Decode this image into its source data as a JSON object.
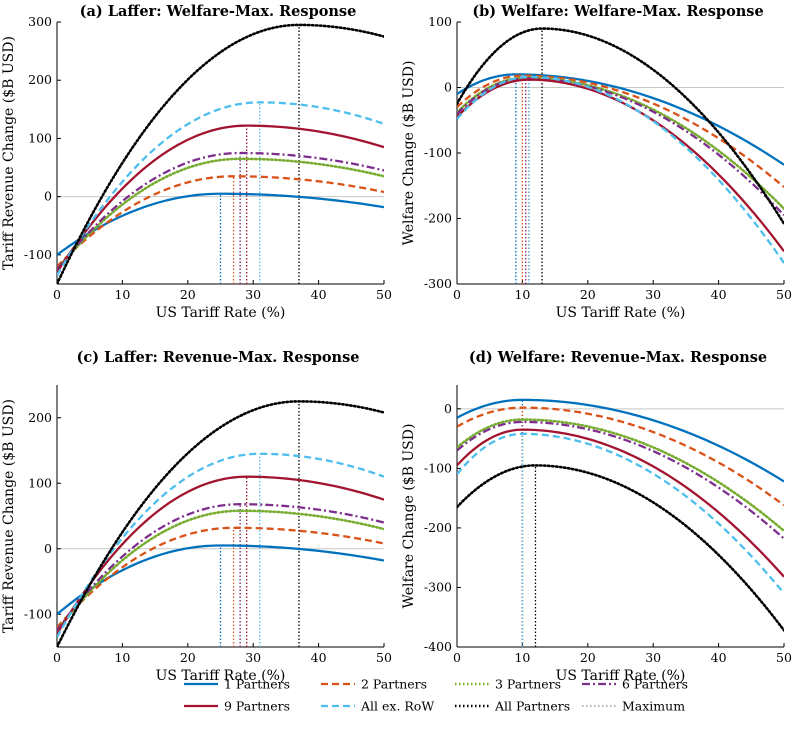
{
  "chart_data": [
    {
      "type": "line",
      "title": "(a) Laffer: Welfare-Max. Response",
      "xlabel": "US Tariff Rate (%)",
      "ylabel": "Tariff Revenue Change ($B USD)",
      "xlim": [
        0,
        50
      ],
      "ylim": [
        -150,
        300
      ],
      "xticks": [
        0,
        10,
        20,
        30,
        40,
        50
      ],
      "yticks": [
        -100,
        0,
        100,
        200,
        300
      ],
      "series": [
        {
          "key": "p1",
          "a": 0,
          "b": -100,
          "t": 25,
          "m": 5,
          "e": -18
        },
        {
          "key": "p2",
          "a": 0,
          "b": -120,
          "t": 27,
          "m": 35,
          "e": 8
        },
        {
          "key": "p3",
          "a": 0,
          "b": -125,
          "t": 28,
          "m": 65,
          "e": 35
        },
        {
          "key": "p6",
          "a": 0,
          "b": -125,
          "t": 28,
          "m": 75,
          "e": 45
        },
        {
          "key": "p9",
          "a": 0,
          "b": -130,
          "t": 29,
          "m": 122,
          "e": 85
        },
        {
          "key": "row",
          "a": 0,
          "b": -135,
          "t": 31,
          "m": 162,
          "e": 125
        },
        {
          "key": "all",
          "a": 0,
          "b": -150,
          "t": 37,
          "m": 295,
          "e": 275
        }
      ]
    },
    {
      "type": "line",
      "title": "(b) Welfare: Welfare-Max. Response",
      "xlabel": "US Tariff Rate (%)",
      "ylabel": "Welfare Change ($B USD)",
      "xlim": [
        0,
        50
      ],
      "ylim": [
        -300,
        100
      ],
      "xticks": [
        0,
        10,
        20,
        30,
        40,
        50
      ],
      "yticks": [
        -300,
        -200,
        -100,
        0,
        100
      ],
      "series": [
        {
          "key": "p1",
          "a": 0,
          "b": -10,
          "t": 9,
          "m": 20,
          "e": -118
        },
        {
          "key": "p2",
          "a": 0,
          "b": -30,
          "t": 10,
          "m": 18,
          "e": -152
        },
        {
          "key": "p3",
          "a": 0,
          "b": -38,
          "t": 10.5,
          "m": 15,
          "e": -185
        },
        {
          "key": "p6",
          "a": 0,
          "b": -40,
          "t": 10.5,
          "m": 14,
          "e": -195
        },
        {
          "key": "p9",
          "a": 0,
          "b": -45,
          "t": 11,
          "m": 12,
          "e": -250
        },
        {
          "key": "row",
          "a": 0,
          "b": -48,
          "t": 11,
          "m": 16,
          "e": -268
        },
        {
          "key": "all",
          "a": 0,
          "b": -25,
          "t": 13,
          "m": 90,
          "e": -208
        }
      ]
    },
    {
      "type": "line",
      "title": "(c) Laffer: Revenue-Max. Response",
      "xlabel": "US Tariff Rate (%)",
      "ylabel": "Tariff Revenue Change ($B USD)",
      "xlim": [
        0,
        50
      ],
      "ylim": [
        -150,
        250
      ],
      "xticks": [
        0,
        10,
        20,
        30,
        40,
        50
      ],
      "yticks": [
        -100,
        0,
        100,
        200
      ],
      "series": [
        {
          "key": "p1",
          "a": 0,
          "b": -100,
          "t": 25,
          "m": 5,
          "e": -18
        },
        {
          "key": "p2",
          "a": 0,
          "b": -120,
          "t": 27,
          "m": 32,
          "e": 8
        },
        {
          "key": "p3",
          "a": 0,
          "b": -125,
          "t": 28,
          "m": 58,
          "e": 30
        },
        {
          "key": "p6",
          "a": 0,
          "b": -125,
          "t": 28,
          "m": 68,
          "e": 40
        },
        {
          "key": "p9",
          "a": 0,
          "b": -130,
          "t": 29,
          "m": 110,
          "e": 75
        },
        {
          "key": "row",
          "a": 0,
          "b": -135,
          "t": 31,
          "m": 145,
          "e": 110
        },
        {
          "key": "all",
          "a": 0,
          "b": -150,
          "t": 37,
          "m": 225,
          "e": 208
        }
      ]
    },
    {
      "type": "line",
      "title": "(d) Welfare: Revenue-Max. Response",
      "xlabel": "US Tariff Rate (%)",
      "ylabel": "Welfare Change ($B USD)",
      "xlim": [
        0,
        50
      ],
      "ylim": [
        -400,
        40
      ],
      "xticks": [
        0,
        10,
        20,
        30,
        40,
        50
      ],
      "yticks": [
        -400,
        -300,
        -200,
        -100,
        0
      ],
      "series": [
        {
          "key": "p1",
          "a": 0,
          "b": -15,
          "t": 10,
          "m": 15,
          "e": -122
        },
        {
          "key": "p2",
          "a": 0,
          "b": -30,
          "t": 10,
          "m": 2,
          "e": -162
        },
        {
          "key": "p3",
          "a": 0,
          "b": -65,
          "t": 10,
          "m": -18,
          "e": -205
        },
        {
          "key": "p6",
          "a": 0,
          "b": -70,
          "t": 10,
          "m": -22,
          "e": -218
        },
        {
          "key": "p9",
          "a": 0,
          "b": -95,
          "t": 10,
          "m": -35,
          "e": -282
        },
        {
          "key": "row",
          "a": 0,
          "b": -110,
          "t": 10,
          "m": -42,
          "e": -310
        },
        {
          "key": "all",
          "a": 0,
          "b": -165,
          "t": 12,
          "m": -95,
          "e": -372
        }
      ]
    }
  ],
  "legend": [
    {
      "key": "p1",
      "label": "1 Partners",
      "color": "#0072BD",
      "dash": "solid"
    },
    {
      "key": "p2",
      "label": "2 Partners",
      "color": "#D95319",
      "dash": "dashed"
    },
    {
      "key": "p3",
      "label": "3 Partners",
      "color": "#77AC30",
      "dash": "dotted"
    },
    {
      "key": "p6",
      "label": "6 Partners",
      "color": "#7E2F8E",
      "dash": "dashdot"
    },
    {
      "key": "p9",
      "label": "9 Partners",
      "color": "#A2142F",
      "dash": "solid"
    },
    {
      "key": "row",
      "label": "All ex. RoW",
      "color": "#4DBEEE",
      "dash": "dashed"
    },
    {
      "key": "all",
      "label": "All Partners",
      "color": "#000000",
      "dash": "dotted"
    },
    {
      "key": "max",
      "label": "Maximum",
      "color": "#888888",
      "dash": "dotted"
    }
  ]
}
